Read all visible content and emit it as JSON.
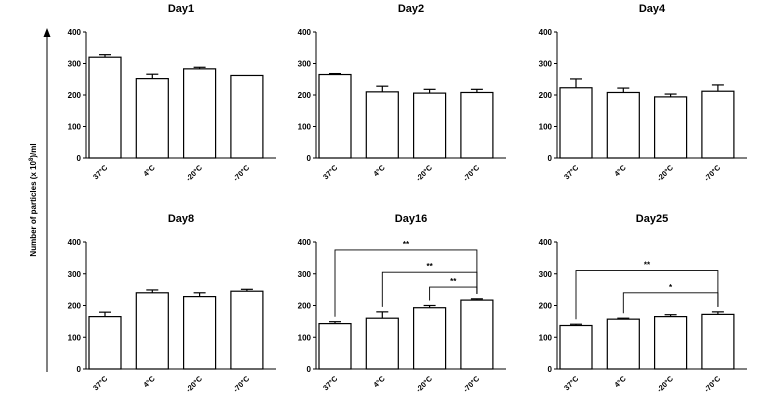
{
  "figure": {
    "ylabel_prefix": "Number of particles (x 10",
    "ylabel_exp": "8",
    "ylabel_suffix": ")/ml"
  },
  "chart_data": [
    {
      "type": "bar",
      "title": "Day1",
      "categories": [
        "37°C",
        "4°C",
        "-20°C",
        "-70°C"
      ],
      "values": [
        320,
        252,
        283,
        262
      ],
      "errors": [
        8,
        14,
        5,
        0
      ],
      "ylim": [
        0,
        400
      ],
      "yticks": [
        0,
        100,
        200,
        300,
        400
      ],
      "significance": []
    },
    {
      "type": "bar",
      "title": "Day2",
      "categories": [
        "37°C",
        "4°C",
        "-20°C",
        "-70°C"
      ],
      "values": [
        265,
        210,
        206,
        208
      ],
      "errors": [
        3,
        18,
        12,
        10
      ],
      "ylim": [
        0,
        400
      ],
      "yticks": [
        0,
        100,
        200,
        300,
        400
      ],
      "significance": []
    },
    {
      "type": "bar",
      "title": "Day4",
      "categories": [
        "37°C",
        "4°C",
        "-20°C",
        "-70°C"
      ],
      "values": [
        223,
        208,
        194,
        212
      ],
      "errors": [
        28,
        14,
        9,
        20
      ],
      "ylim": [
        0,
        400
      ],
      "yticks": [
        0,
        100,
        200,
        300,
        400
      ],
      "significance": []
    },
    {
      "type": "bar",
      "title": "Day8",
      "categories": [
        "37°C",
        "4°C",
        "-20°C",
        "-70°C"
      ],
      "values": [
        165,
        240,
        228,
        245
      ],
      "errors": [
        14,
        9,
        12,
        6
      ],
      "ylim": [
        0,
        400
      ],
      "yticks": [
        0,
        100,
        200,
        300,
        400
      ],
      "significance": []
    },
    {
      "type": "bar",
      "title": "Day16",
      "categories": [
        "37°C",
        "4°C",
        "-20°C",
        "-70°C"
      ],
      "values": [
        143,
        160,
        193,
        217
      ],
      "errors": [
        6,
        20,
        7,
        4
      ],
      "ylim": [
        0,
        400
      ],
      "yticks": [
        0,
        100,
        200,
        300,
        400
      ],
      "significance": [
        {
          "from": 0,
          "to": 3,
          "level": 375,
          "label": "**"
        },
        {
          "from": 1,
          "to": 3,
          "level": 305,
          "label": "**"
        },
        {
          "from": 2,
          "to": 3,
          "level": 258,
          "label": "**"
        }
      ]
    },
    {
      "type": "bar",
      "title": "Day25",
      "categories": [
        "37°C",
        "4°C",
        "-20°C",
        "-70°C"
      ],
      "values": [
        137,
        157,
        165,
        172
      ],
      "errors": [
        4,
        3,
        6,
        8
      ],
      "ylim": [
        0,
        400
      ],
      "yticks": [
        0,
        100,
        200,
        300,
        400
      ],
      "significance": [
        {
          "from": 0,
          "to": 3,
          "level": 310,
          "label": "**"
        },
        {
          "from": 1,
          "to": 3,
          "level": 240,
          "label": "*"
        }
      ]
    }
  ]
}
